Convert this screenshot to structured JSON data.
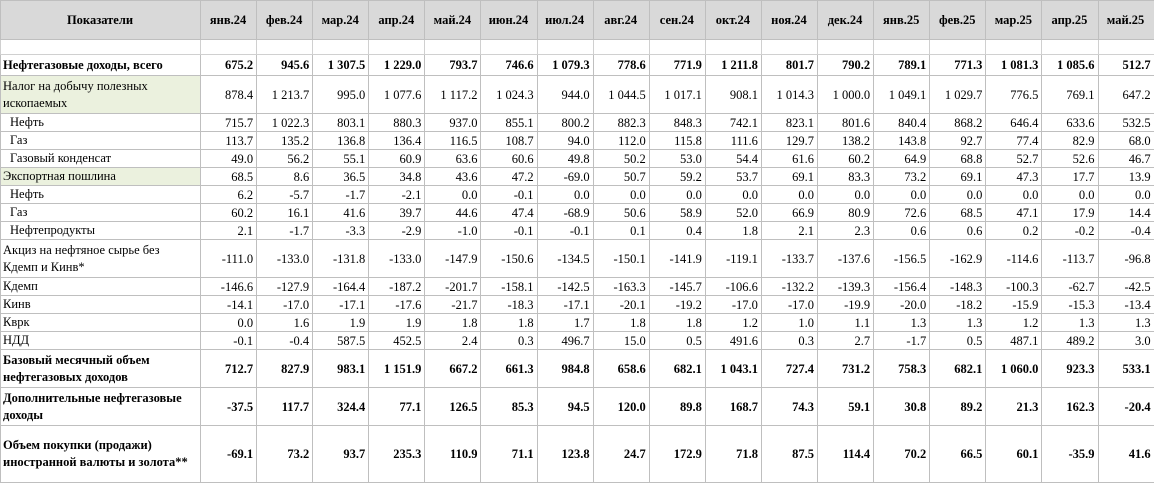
{
  "header": {
    "label": "Показатели",
    "months": [
      "янв.24",
      "фев.24",
      "мар.24",
      "апр.24",
      "май.24",
      "июн.24",
      "июл.24",
      "авг.24",
      "сен.24",
      "окт.24",
      "ноя.24",
      "дек.24",
      "янв.25",
      "фев.25",
      "мар.25",
      "апр.25",
      "май.25"
    ]
  },
  "rows": [
    {
      "label": "Нефтегазовые доходы, всего",
      "bold": true,
      "values": [
        "675.2",
        "945.6",
        "1 307.5",
        "1 229.0",
        "793.7",
        "746.6",
        "1 079.3",
        "778.6",
        "771.9",
        "1 211.8",
        "801.7",
        "790.2",
        "789.1",
        "771.3",
        "1 081.3",
        "1 085.6",
        "512.7"
      ]
    },
    {
      "label": "Налог на добычу полезных ископаемых",
      "highlight": true,
      "values": [
        "878.4",
        "1 213.7",
        "995.0",
        "1 077.6",
        "1 117.2",
        "1 024.3",
        "944.0",
        "1 044.5",
        "1 017.1",
        "908.1",
        "1 014.3",
        "1 000.0",
        "1 049.1",
        "1 029.7",
        "776.5",
        "769.1",
        "647.2"
      ]
    },
    {
      "label": "Нефть",
      "indent": true,
      "values": [
        "715.7",
        "1 022.3",
        "803.1",
        "880.3",
        "937.0",
        "855.1",
        "800.2",
        "882.3",
        "848.3",
        "742.1",
        "823.1",
        "801.6",
        "840.4",
        "868.2",
        "646.4",
        "633.6",
        "532.5"
      ]
    },
    {
      "label": "Газ",
      "indent": true,
      "values": [
        "113.7",
        "135.2",
        "136.8",
        "136.4",
        "116.5",
        "108.7",
        "94.0",
        "112.0",
        "115.8",
        "111.6",
        "129.7",
        "138.2",
        "143.8",
        "92.7",
        "77.4",
        "82.9",
        "68.0"
      ]
    },
    {
      "label": "Газовый конденсат",
      "indent": true,
      "values": [
        "49.0",
        "56.2",
        "55.1",
        "60.9",
        "63.6",
        "60.6",
        "49.8",
        "50.2",
        "53.0",
        "54.4",
        "61.6",
        "60.2",
        "64.9",
        "68.8",
        "52.7",
        "52.6",
        "46.7"
      ]
    },
    {
      "label": "Экспортная пошлина",
      "highlight": true,
      "values": [
        "68.5",
        "8.6",
        "36.5",
        "34.8",
        "43.6",
        "47.2",
        "-69.0",
        "50.7",
        "59.2",
        "53.7",
        "69.1",
        "83.3",
        "73.2",
        "69.1",
        "47.3",
        "17.7",
        "13.9"
      ]
    },
    {
      "label": "Нефть",
      "indent": true,
      "values": [
        "6.2",
        "-5.7",
        "-1.7",
        "-2.1",
        "0.0",
        "-0.1",
        "0.0",
        "0.0",
        "0.0",
        "0.0",
        "0.0",
        "0.0",
        "0.0",
        "0.0",
        "0.0",
        "0.0",
        "0.0"
      ]
    },
    {
      "label": "Газ",
      "indent": true,
      "values": [
        "60.2",
        "16.1",
        "41.6",
        "39.7",
        "44.6",
        "47.4",
        "-68.9",
        "50.6",
        "58.9",
        "52.0",
        "66.9",
        "80.9",
        "72.6",
        "68.5",
        "47.1",
        "17.9",
        "14.4"
      ]
    },
    {
      "label": "Нефтепродукты",
      "indent": true,
      "values": [
        "2.1",
        "-1.7",
        "-3.3",
        "-2.9",
        "-1.0",
        "-0.1",
        "-0.1",
        "0.1",
        "0.4",
        "1.8",
        "2.1",
        "2.3",
        "0.6",
        "0.6",
        "0.2",
        "-0.2",
        "-0.4"
      ]
    },
    {
      "label": "Акциз на нефтяное сырье без Кдемп и Кинв*",
      "values": [
        "-111.0",
        "-133.0",
        "-131.8",
        "-133.0",
        "-147.9",
        "-150.6",
        "-134.5",
        "-150.1",
        "-141.9",
        "-119.1",
        "-133.7",
        "-137.6",
        "-156.5",
        "-162.9",
        "-114.6",
        "-113.7",
        "-96.8"
      ]
    },
    {
      "label": "Кдемп",
      "values": [
        "-146.6",
        "-127.9",
        "-164.4",
        "-187.2",
        "-201.7",
        "-158.1",
        "-142.5",
        "-163.3",
        "-145.7",
        "-106.6",
        "-132.2",
        "-139.3",
        "-156.4",
        "-148.3",
        "-100.3",
        "-62.7",
        "-42.5"
      ]
    },
    {
      "label": "Кинв",
      "values": [
        "-14.1",
        "-17.0",
        "-17.1",
        "-17.6",
        "-21.7",
        "-18.3",
        "-17.1",
        "-20.1",
        "-19.2",
        "-17.0",
        "-17.0",
        "-19.9",
        "-20.0",
        "-18.2",
        "-15.9",
        "-15.3",
        "-13.4"
      ]
    },
    {
      "label": "Кврк",
      "values": [
        "0.0",
        "1.6",
        "1.9",
        "1.9",
        "1.8",
        "1.8",
        "1.7",
        "1.8",
        "1.8",
        "1.2",
        "1.0",
        "1.1",
        "1.3",
        "1.3",
        "1.2",
        "1.3",
        "1.3"
      ]
    },
    {
      "label": "НДД",
      "values": [
        "-0.1",
        "-0.4",
        "587.5",
        "452.5",
        "2.4",
        "0.3",
        "496.7",
        "15.0",
        "0.5",
        "491.6",
        "0.3",
        "2.7",
        "-1.7",
        "0.5",
        "487.1",
        "489.2",
        "3.0"
      ]
    },
    {
      "label": "Базовый месячный объем нефтегазовых доходов",
      "bold": true,
      "values": [
        "712.7",
        "827.9",
        "983.1",
        "1 151.9",
        "667.2",
        "661.3",
        "984.8",
        "658.6",
        "682.1",
        "1 043.1",
        "727.4",
        "731.2",
        "758.3",
        "682.1",
        "1 060.0",
        "923.3",
        "533.1"
      ]
    },
    {
      "label": "Дополнительные нефтегазовые доходы",
      "bold": true,
      "values": [
        "-37.5",
        "117.7",
        "324.4",
        "77.1",
        "126.5",
        "85.3",
        "94.5",
        "120.0",
        "89.8",
        "168.7",
        "74.3",
        "59.1",
        "30.8",
        "89.2",
        "21.3",
        "162.3",
        "-20.4"
      ]
    },
    {
      "label": "Объем покупки (продажи) иностранной валюты и золота**",
      "bold": true,
      "values": [
        "-69.1",
        "73.2",
        "93.7",
        "235.3",
        "110.9",
        "71.1",
        "123.8",
        "24.7",
        "172.9",
        "71.8",
        "87.5",
        "114.4",
        "70.2",
        "66.5",
        "60.1",
        "-35.9",
        "41.6"
      ]
    }
  ]
}
